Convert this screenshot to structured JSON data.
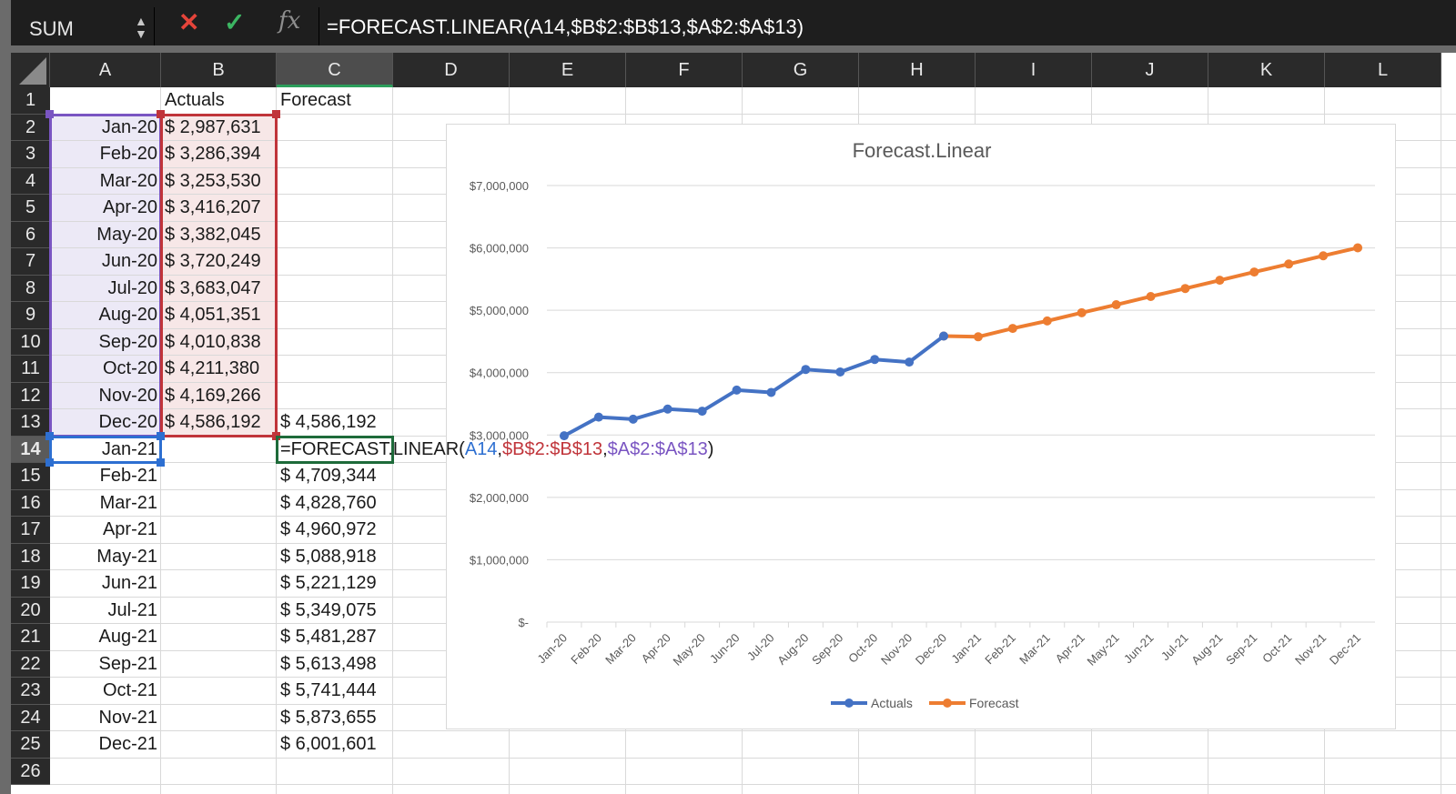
{
  "formula_bar": {
    "name_box": "SUM",
    "cancel_icon": "close-icon",
    "enter_icon": "checkmark-icon",
    "fx_label": "fx",
    "formula": "=FORECAST.LINEAR(A14,$B$2:$B$13,$A$2:$A$13)"
  },
  "columns": [
    "A",
    "B",
    "C",
    "D",
    "E",
    "F",
    "G",
    "H",
    "I",
    "J",
    "K",
    "L"
  ],
  "active_column": "C",
  "active_row": "14",
  "rows": [
    "1",
    "2",
    "3",
    "4",
    "5",
    "6",
    "7",
    "8",
    "9",
    "10",
    "11",
    "12",
    "13",
    "14",
    "15",
    "16",
    "17",
    "18",
    "19",
    "20",
    "21",
    "22",
    "23",
    "24",
    "25",
    "26"
  ],
  "headers": {
    "b1": "Actuals",
    "c1": "Forecast"
  },
  "dates": [
    "Jan-20",
    "Feb-20",
    "Mar-20",
    "Apr-20",
    "May-20",
    "Jun-20",
    "Jul-20",
    "Aug-20",
    "Sep-20",
    "Oct-20",
    "Nov-20",
    "Dec-20",
    "Jan-21",
    "Feb-21",
    "Mar-21",
    "Apr-21",
    "May-21",
    "Jun-21",
    "Jul-21",
    "Aug-21",
    "Sep-21",
    "Oct-21",
    "Nov-21",
    "Dec-21"
  ],
  "actuals": [
    "$ 2,987,631",
    "$ 3,286,394",
    "$ 3,253,530",
    "$ 3,416,207",
    "$ 3,382,045",
    "$ 3,720,249",
    "$ 3,683,047",
    "$ 4,051,351",
    "$ 4,010,838",
    "$ 4,211,380",
    "$ 4,169,266",
    "$ 4,586,192"
  ],
  "forecast_cells": {
    "c13": "$ 4,586,192",
    "c15": "$ 4,709,344",
    "c16": "$ 4,828,760",
    "c17": "$ 4,960,972",
    "c18": "$ 5,088,918",
    "c19": "$ 5,221,129",
    "c20": "$ 5,349,075",
    "c21": "$ 5,481,287",
    "c22": "$ 5,613,498",
    "c23": "$ 5,741,444",
    "c24": "$ 5,873,655",
    "c25": "$ 6,001,601"
  },
  "editing_formula": {
    "prefix": "=FORECAST.LINEAR(",
    "arg1": "A14",
    "sep1": ",",
    "arg2": "$B$2:$B$13",
    "sep2": ",",
    "arg3": "$A$2:$A$13",
    "suffix": ")"
  },
  "colors": {
    "actuals": "#4472C4",
    "forecast": "#ED7D31",
    "range_a": "#7a55c2",
    "range_b": "#c0343a",
    "range_a14": "#2d6fd1",
    "active_cell": "#1e6b3a"
  },
  "chart_data": {
    "type": "line",
    "title": "Forecast.Linear",
    "categories": [
      "Jan-20",
      "Feb-20",
      "Mar-20",
      "Apr-20",
      "May-20",
      "Jun-20",
      "Jul-20",
      "Aug-20",
      "Sep-20",
      "Oct-20",
      "Nov-20",
      "Dec-20",
      "Jan-21",
      "Feb-21",
      "Mar-21",
      "Apr-21",
      "May-21",
      "Jun-21",
      "Jul-21",
      "Aug-21",
      "Sep-21",
      "Oct-21",
      "Nov-21",
      "Dec-21"
    ],
    "series": [
      {
        "name": "Actuals",
        "color": "#4472C4",
        "values": [
          2987631,
          3286394,
          3253530,
          3416207,
          3382045,
          3720249,
          3683047,
          4051351,
          4010838,
          4211380,
          4169266,
          4586192,
          null,
          null,
          null,
          null,
          null,
          null,
          null,
          null,
          null,
          null,
          null,
          null
        ]
      },
      {
        "name": "Forecast",
        "color": "#ED7D31",
        "values": [
          null,
          null,
          null,
          null,
          null,
          null,
          null,
          null,
          null,
          null,
          null,
          4586192,
          4575000,
          4709344,
          4828760,
          4960972,
          5088918,
          5221129,
          5349075,
          5481287,
          5613498,
          5741444,
          5873655,
          6001601
        ]
      }
    ],
    "ylim": [
      0,
      7000000
    ],
    "yticks": [
      0,
      1000000,
      2000000,
      3000000,
      4000000,
      5000000,
      6000000,
      7000000
    ],
    "ytick_labels": [
      "$-",
      "$1,000,000",
      "$2,000,000",
      "$3,000,000",
      "$4,000,000",
      "$5,000,000",
      "$6,000,000",
      "$7,000,000"
    ],
    "grid": true,
    "legend": "bottom"
  }
}
